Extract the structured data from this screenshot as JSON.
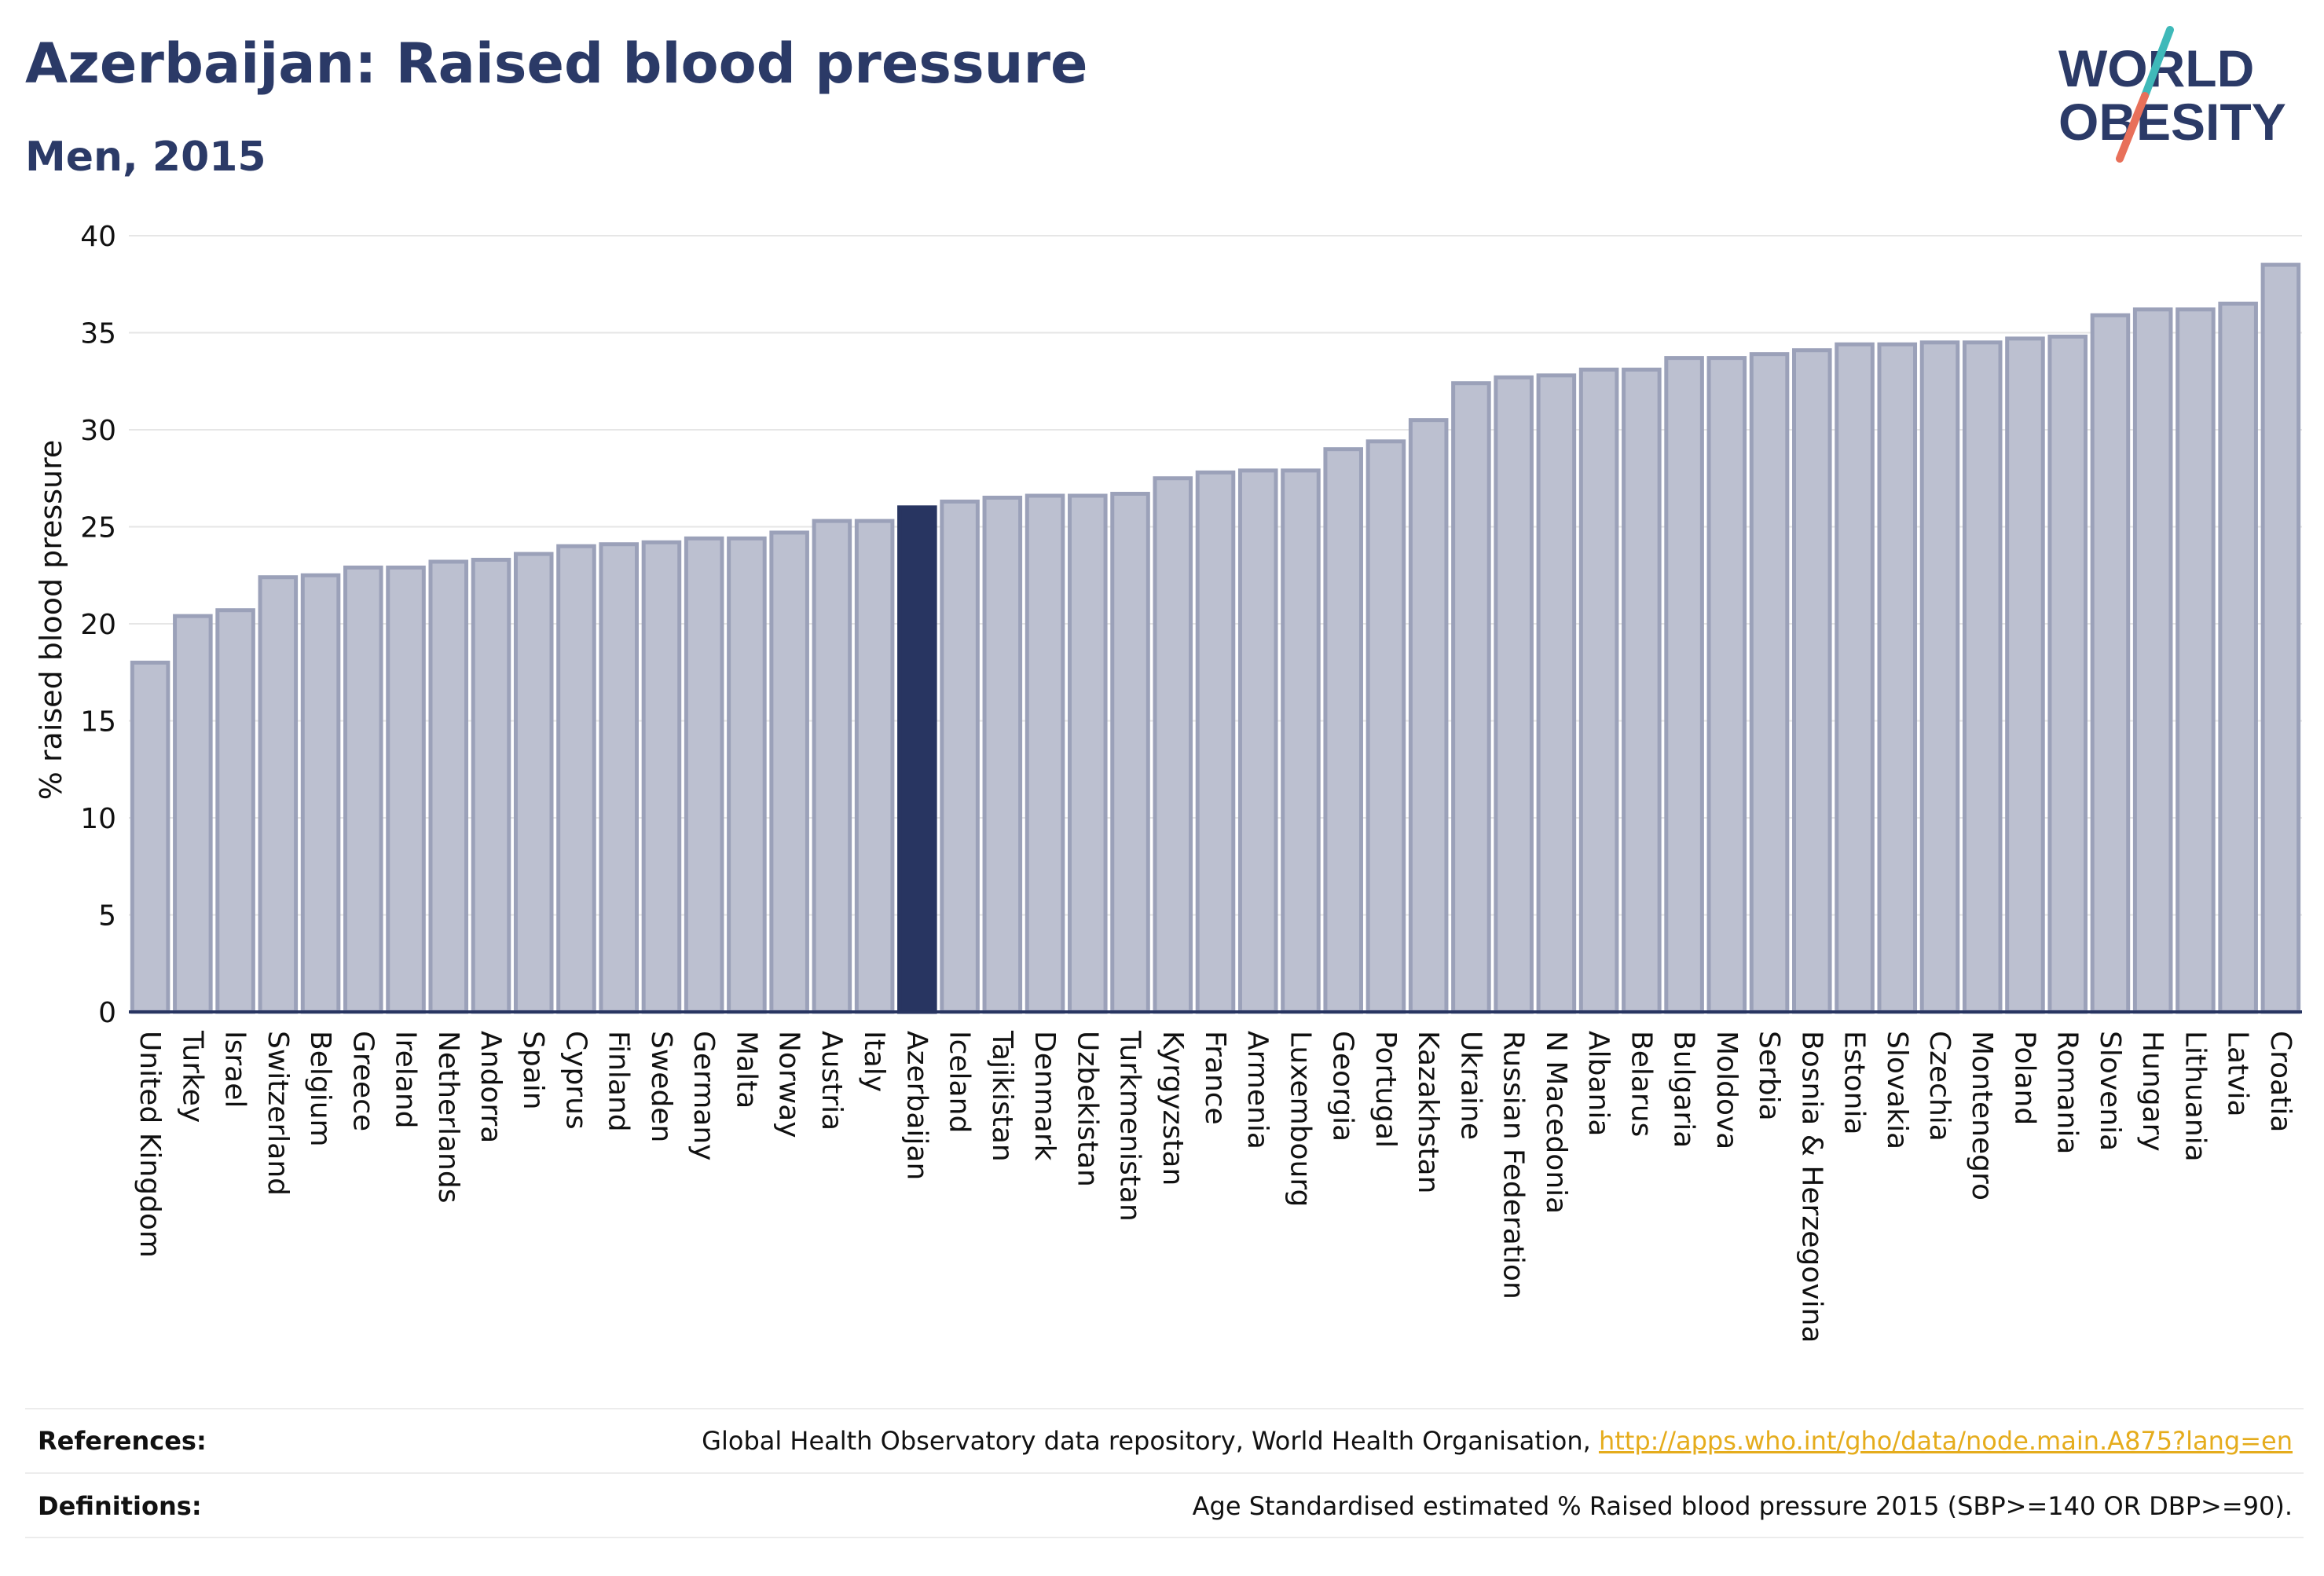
{
  "title": "Azerbaijan: Raised blood pressure",
  "subtitle": "Men, 2015",
  "logo": {
    "line1": "WORLD",
    "line2": "OBESITY",
    "accent_teal": "#3fb9b9",
    "accent_red": "#e8705a",
    "text_color": "#2b3a67"
  },
  "colors": {
    "bar": "#bcc0d0",
    "bar_edge": "#9ba1b9",
    "highlight": "#283561",
    "grid": "#e6e6e6",
    "axis": "#283561"
  },
  "chart_data": {
    "type": "bar",
    "ylabel": "% raised blood pressure",
    "ylim": [
      0,
      40
    ],
    "yticks": [
      0,
      5,
      10,
      15,
      20,
      25,
      30,
      35,
      40
    ],
    "grid": true,
    "highlight": "Azerbaijan",
    "categories": [
      "United Kingdom",
      "Turkey",
      "Israel",
      "Switzerland",
      "Belgium",
      "Greece",
      "Ireland",
      "Netherlands",
      "Andorra",
      "Spain",
      "Cyprus",
      "Finland",
      "Sweden",
      "Germany",
      "Malta",
      "Norway",
      "Austria",
      "Italy",
      "Azerbaijan",
      "Iceland",
      "Tajikistan",
      "Denmark",
      "Uzbekistan",
      "Turkmenistan",
      "Kyrgyzstan",
      "France",
      "Armenia",
      "Luxembourg",
      "Georgia",
      "Portugal",
      "Kazakhstan",
      "Ukraine",
      "Russian Federation",
      "N Macedonia",
      "Albania",
      "Belarus",
      "Bulgaria",
      "Moldova",
      "Serbia",
      "Bosnia & Herzegovina",
      "Estonia",
      "Slovakia",
      "Czechia",
      "Montenegro",
      "Poland",
      "Romania",
      "Slovenia",
      "Hungary",
      "Lithuania",
      "Latvia",
      "Croatia"
    ],
    "values": [
      18.0,
      20.4,
      20.7,
      22.4,
      22.5,
      22.9,
      22.9,
      23.2,
      23.3,
      23.6,
      24.0,
      24.1,
      24.2,
      24.4,
      24.4,
      24.7,
      25.3,
      25.3,
      26.0,
      26.3,
      26.5,
      26.6,
      26.6,
      26.7,
      27.5,
      27.8,
      27.9,
      27.9,
      29.0,
      29.4,
      30.5,
      32.4,
      32.7,
      32.8,
      33.1,
      33.1,
      33.7,
      33.7,
      33.9,
      34.1,
      34.4,
      34.4,
      34.5,
      34.5,
      34.7,
      34.8,
      35.9,
      36.2,
      36.2,
      36.5,
      38.5
    ]
  },
  "footer": {
    "references_label": "References:",
    "references_text": "Global Health Observatory data repository, World Health Organisation,",
    "references_link": "http://apps.who.int/gho/data/node.main.A875?lang=en",
    "definitions_label": "Definitions:",
    "definitions_text": "Age Standardised estimated % Raised blood pressure 2015 (SBP>=140 OR DBP>=90)."
  }
}
